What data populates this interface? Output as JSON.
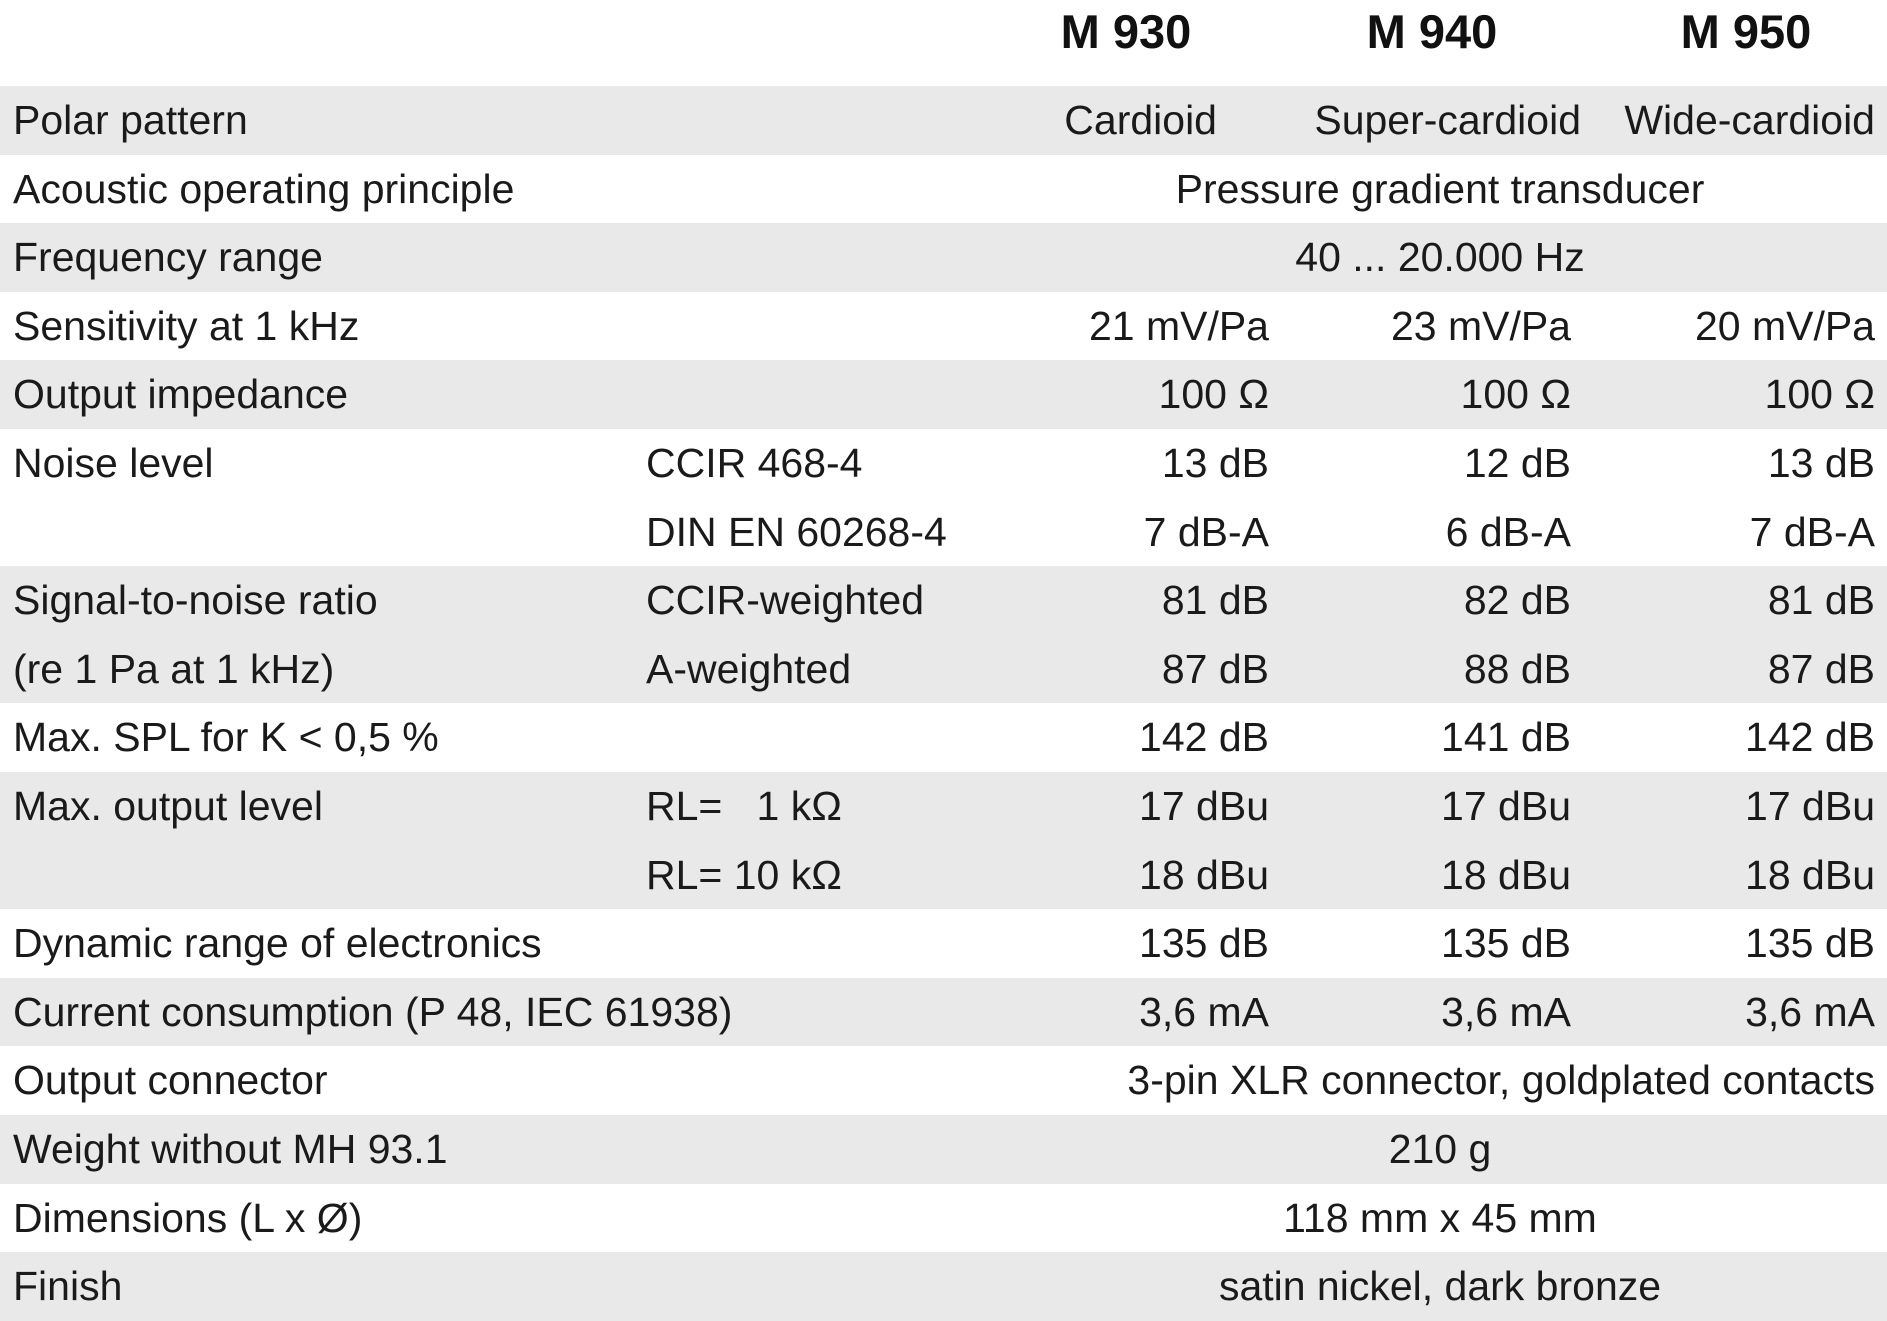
{
  "header": {
    "models": [
      "M 930",
      "M 940",
      "M 950"
    ]
  },
  "rows": {
    "polar": {
      "label": "Polar pattern",
      "v1": "Cardioid",
      "v2": "Super-cardioid",
      "v3": "Wide-cardioid"
    },
    "acoustic": {
      "label": "Acoustic operating principle",
      "value": "Pressure gradient transducer"
    },
    "freq": {
      "label": "Frequency range",
      "value": "40 ... 20.000 Hz"
    },
    "sens": {
      "label": "Sensitivity at 1 kHz",
      "v1": "21 mV/Pa",
      "v2": "23 mV/Pa",
      "v3": "20 mV/Pa"
    },
    "impedance": {
      "label": "Output impedance",
      "v1": "100 Ω",
      "v2": "100 Ω",
      "v3": "100 Ω"
    },
    "noise1": {
      "label": "Noise level",
      "sub": "CCIR 468-4",
      "v1": "13 dB",
      "v2": "12 dB",
      "v3": "13 dB"
    },
    "noise2": {
      "sub": "DIN EN 60268-4",
      "v1": "7 dB-A",
      "v2": "6 dB-A",
      "v3": "7 dB-A"
    },
    "snr1": {
      "label": "Signal-to-noise ratio",
      "sub": "CCIR-weighted",
      "v1": "81 dB",
      "v2": "82 dB",
      "v3": "81 dB"
    },
    "snr2": {
      "label": "(re 1 Pa at 1 kHz)",
      "sub": "A-weighted",
      "v1": "87 dB",
      "v2": "88 dB",
      "v3": "87 dB"
    },
    "spl": {
      "label": "Max. SPL for K < 0,5 %",
      "v1": "142 dB",
      "v2": "141 dB",
      "v3": "142 dB"
    },
    "outlvl1": {
      "label": "Max. output level",
      "sub": "RL=   1 kΩ",
      "v1": "17 dBu",
      "v2": "17 dBu",
      "v3": "17 dBu"
    },
    "outlvl2": {
      "sub": "RL= 10 kΩ",
      "v1": "18 dBu",
      "v2": "18 dBu",
      "v3": "18 dBu"
    },
    "dynamic": {
      "label": "Dynamic range of electronics",
      "v1": "135 dB",
      "v2": "135 dB",
      "v3": "135 dB"
    },
    "current": {
      "label": "Current consumption (P 48, IEC 61938)",
      "v1": "3,6 mA",
      "v2": "3,6 mA",
      "v3": "3,6 mA"
    },
    "connector": {
      "label": "Output connector",
      "value": "3-pin XLR connector, goldplated contacts"
    },
    "weight": {
      "label": "Weight without MH 93.1",
      "value": "210 g"
    },
    "dims": {
      "label": "Dimensions (L x Ø)",
      "value": "118 mm x 45 mm"
    },
    "finish": {
      "label": "Finish",
      "value": "satin nickel, dark bronze"
    }
  }
}
